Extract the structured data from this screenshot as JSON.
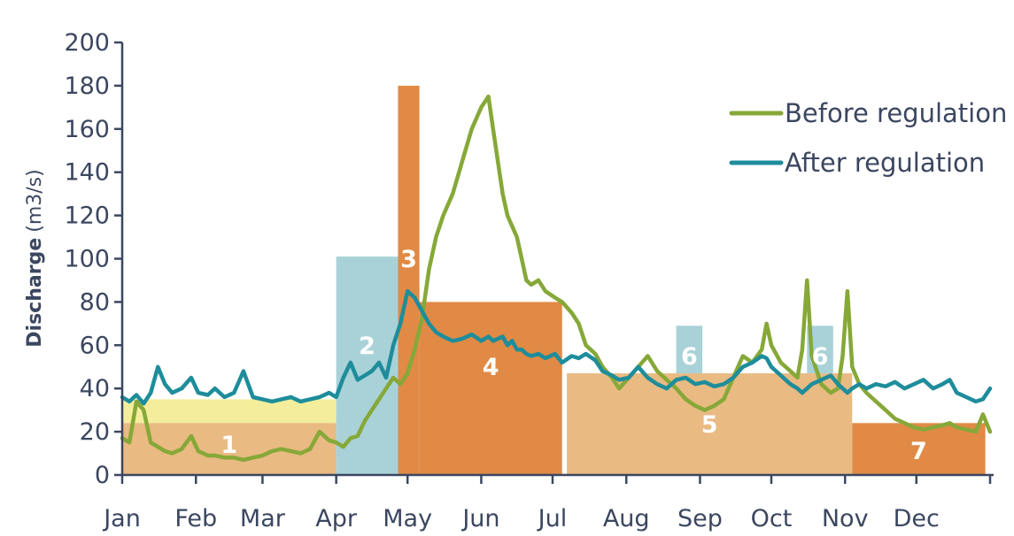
{
  "chart_data": {
    "type": "line",
    "xlabel": "",
    "ylabel": "Discharge",
    "ylabel_unit": "(m3/s)",
    "ylim": [
      0,
      200
    ],
    "yticks": [
      "0",
      "20",
      "40",
      "60",
      "80",
      "100",
      "120",
      "140",
      "160",
      "180",
      "200"
    ],
    "xlim": [
      1,
      366
    ],
    "x_unit": "day of year",
    "months": [
      "Jan",
      "Feb",
      "Mar",
      "Apr",
      "May",
      "Jun",
      "Jul",
      "Aug",
      "Sep",
      "Oct",
      "Nov",
      "Dec"
    ],
    "grid": false,
    "legend_position": "top-right",
    "zones": [
      {
        "label": "",
        "color": "#f4ee9c",
        "x": [
          1,
          91
        ],
        "y": [
          24,
          35
        ]
      },
      {
        "label": "1",
        "color": "#e9ba82",
        "x": [
          1,
          91
        ],
        "y": [
          0,
          24
        ]
      },
      {
        "label": "2",
        "color": "#a8d2d8",
        "x": [
          91,
          117
        ],
        "y": [
          0,
          101
        ]
      },
      {
        "label": "3",
        "color": "#e08a45",
        "x": [
          117,
          126
        ],
        "y": [
          0,
          180
        ]
      },
      {
        "label": "4",
        "color": "#e08a45",
        "x": [
          126,
          186
        ],
        "y": [
          0,
          80
        ]
      },
      {
        "label": "5",
        "color": "#e9ba82",
        "x": [
          188,
          308
        ],
        "y": [
          0,
          47
        ]
      },
      {
        "label": "6",
        "color": "#a8d2d8",
        "x": [
          234,
          245
        ],
        "y": [
          47,
          69
        ]
      },
      {
        "label": "6",
        "color": "#a8d2d8",
        "x": [
          289,
          300
        ],
        "y": [
          47,
          69
        ]
      },
      {
        "label": "7",
        "color": "#e08a45",
        "x": [
          308,
          364
        ],
        "y": [
          0,
          24
        ]
      }
    ],
    "series": [
      {
        "name": "Before regulation",
        "color": "#86a838",
        "x": [
          1,
          4,
          7,
          10,
          13,
          16,
          19,
          22,
          26,
          30,
          33,
          37,
          40,
          44,
          48,
          52,
          56,
          60,
          64,
          68,
          72,
          76,
          80,
          84,
          88,
          91,
          94,
          97,
          100,
          103,
          106,
          109,
          112,
          115,
          118,
          121,
          124,
          127,
          130,
          133,
          136,
          140,
          144,
          148,
          152,
          155,
          157,
          159,
          161,
          163,
          165,
          167,
          169,
          171,
          173,
          176,
          179,
          183,
          186,
          190,
          193,
          196,
          200,
          203,
          207,
          210,
          214,
          218,
          222,
          226,
          230,
          234,
          238,
          242,
          246,
          250,
          254,
          258,
          262,
          266,
          270,
          272,
          274,
          278,
          282,
          285,
          287,
          289,
          291,
          295,
          299,
          302,
          304,
          306,
          308,
          311,
          314,
          318,
          322,
          326,
          330,
          334,
          338,
          342,
          346,
          349,
          352,
          356,
          360,
          363,
          366
        ],
        "y": [
          17,
          15,
          34,
          30,
          15,
          13,
          11,
          10,
          12,
          18,
          11,
          9,
          9,
          8,
          8,
          7,
          8,
          9,
          11,
          12,
          11,
          10,
          12,
          20,
          16,
          15,
          13,
          17,
          18,
          25,
          30,
          35,
          40,
          45,
          42,
          47,
          58,
          72,
          95,
          110,
          120,
          130,
          145,
          160,
          170,
          175,
          160,
          145,
          130,
          120,
          115,
          110,
          100,
          90,
          88,
          90,
          85,
          82,
          80,
          75,
          70,
          60,
          56,
          50,
          45,
          40,
          45,
          50,
          55,
          48,
          44,
          40,
          35,
          32,
          30,
          32,
          35,
          45,
          55,
          52,
          58,
          70,
          60,
          52,
          48,
          45,
          58,
          90,
          55,
          42,
          38,
          40,
          55,
          85,
          50,
          42,
          38,
          34,
          30,
          26,
          24,
          22,
          21,
          22,
          23,
          24,
          22,
          21,
          20,
          28,
          20
        ],
        "legend_label": "Before regulation"
      },
      {
        "name": "After regulation",
        "color": "#1e8d9b",
        "x": [
          1,
          4,
          7,
          10,
          13,
          16,
          19,
          22,
          26,
          30,
          33,
          37,
          40,
          44,
          48,
          52,
          56,
          60,
          64,
          68,
          72,
          76,
          80,
          84,
          88,
          91,
          94,
          97,
          100,
          103,
          106,
          109,
          112,
          115,
          118,
          121,
          124,
          127,
          130,
          133,
          136,
          140,
          144,
          148,
          152,
          155,
          157,
          159,
          161,
          163,
          165,
          167,
          169,
          171,
          173,
          176,
          179,
          183,
          186,
          190,
          193,
          196,
          200,
          203,
          207,
          210,
          214,
          218,
          222,
          226,
          230,
          234,
          238,
          242,
          246,
          250,
          254,
          258,
          262,
          266,
          270,
          272,
          274,
          278,
          282,
          285,
          287,
          289,
          291,
          295,
          299,
          302,
          304,
          306,
          308,
          311,
          314,
          318,
          322,
          326,
          330,
          334,
          338,
          342,
          346,
          349,
          352,
          356,
          360,
          363,
          366
        ],
        "y": [
          36,
          34,
          37,
          33,
          38,
          50,
          42,
          38,
          40,
          45,
          38,
          37,
          40,
          36,
          38,
          48,
          36,
          35,
          34,
          35,
          36,
          34,
          35,
          36,
          38,
          36,
          45,
          52,
          44,
          46,
          48,
          52,
          45,
          60,
          70,
          85,
          82,
          76,
          70,
          66,
          64,
          62,
          63,
          65,
          62,
          64,
          62,
          63,
          64,
          60,
          62,
          58,
          58,
          56,
          55,
          56,
          54,
          56,
          52,
          55,
          54,
          56,
          53,
          48,
          46,
          44,
          45,
          50,
          45,
          42,
          40,
          44,
          45,
          42,
          43,
          41,
          42,
          45,
          50,
          52,
          55,
          54,
          50,
          46,
          42,
          40,
          38,
          40,
          42,
          44,
          46,
          42,
          40,
          38,
          40,
          42,
          40,
          42,
          41,
          43,
          40,
          42,
          44,
          40,
          42,
          44,
          38,
          36,
          34,
          35,
          40
        ],
        "legend_label": "After regulation"
      }
    ]
  }
}
